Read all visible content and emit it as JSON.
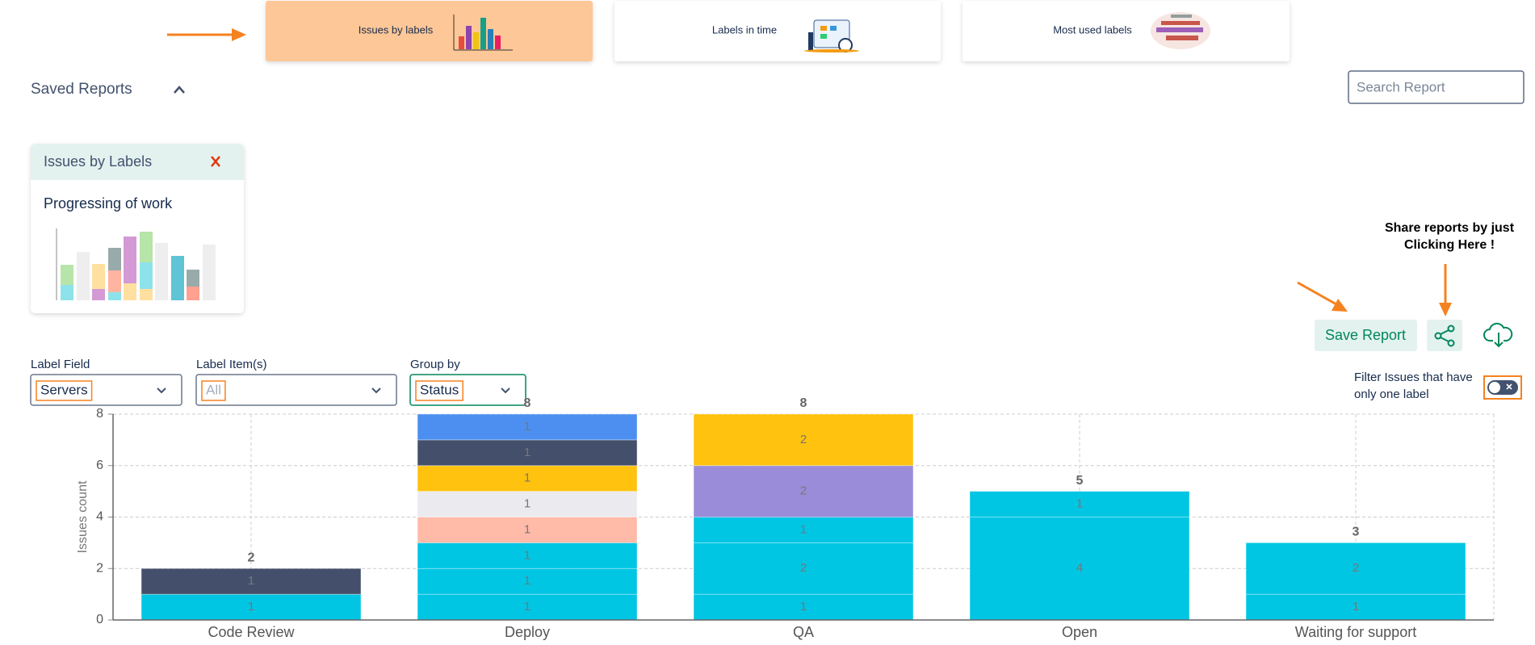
{
  "tabs": [
    {
      "label": "Issues by labels"
    },
    {
      "label": "Labels in time"
    },
    {
      "label": "Most used labels"
    }
  ],
  "saved_reports": {
    "title": "Saved Reports",
    "search_placeholder": "Search Report"
  },
  "report_card": {
    "title": "Issues by Labels",
    "description": "Progressing of work"
  },
  "share_hint": {
    "lines": [
      "Share reports by just",
      "Clicking Here !"
    ]
  },
  "save_button": "Save Report",
  "filters": [
    {
      "label": "Label Field",
      "value": "Servers"
    },
    {
      "label": "Label Item(s)",
      "value": "All"
    },
    {
      "label": "Group by",
      "value": "Status"
    }
  ],
  "filter_toggle": {
    "lines": [
      "Filter Issues that have",
      "only one label"
    ]
  },
  "chart_data": {
    "type": "stacked_bar",
    "y_label": "Issues count",
    "categories": [
      "Code Review",
      "Deploy",
      "QA",
      "Open",
      "Waiting for support"
    ],
    "series": [
      {
        "color": "#00c5e3",
        "values": [
          1,
          1,
          1,
          4,
          1
        ]
      },
      {
        "color": "#00c5e3",
        "values": [
          null,
          1,
          2,
          1,
          2
        ]
      },
      {
        "color": "#00c5e3",
        "values": [
          null,
          1,
          1,
          null,
          null
        ]
      },
      {
        "color": "#ffbaa8",
        "values": [
          null,
          1,
          null,
          null,
          null
        ]
      },
      {
        "color": "#ebebef",
        "values": [
          null,
          1,
          null,
          null,
          null
        ]
      },
      {
        "color": "#9b8cd9",
        "values": [
          null,
          null,
          2,
          null,
          null
        ]
      },
      {
        "color": "#ffc20e",
        "values": [
          null,
          1,
          2,
          null,
          null
        ]
      },
      {
        "color": "#44506b",
        "values": [
          1,
          1,
          null,
          null,
          null
        ]
      },
      {
        "color": "#4c8ff0",
        "values": [
          null,
          1,
          null,
          null,
          null
        ]
      }
    ],
    "totals": [
      2,
      8,
      8,
      5,
      3
    ],
    "ylim": [
      0,
      8
    ],
    "yticks": [
      0,
      2,
      4,
      6,
      8
    ],
    "grid": true
  }
}
